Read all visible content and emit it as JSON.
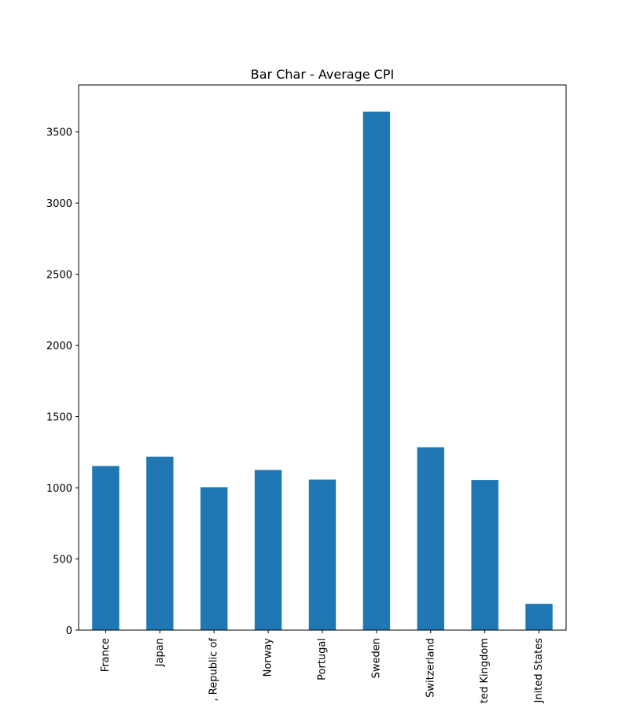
{
  "chart_data": {
    "type": "bar",
    "title": "Bar Char - Average CPI",
    "xlabel": "",
    "ylabel": "",
    "categories": [
      "France",
      "Japan",
      "Korea, Republic of",
      "Norway",
      "Portugal",
      "Sweden",
      "Switzerland",
      "United Kingdom",
      "United States"
    ],
    "tick_label_display": [
      "France",
      "Japan",
      ", Republic of",
      "Norway",
      "Portugal",
      "Sweden",
      "Switzerland",
      "ted Kingdom",
      "Jnited States"
    ],
    "values": [
      1153,
      1218,
      1004,
      1125,
      1058,
      3643,
      1285,
      1055,
      184
    ],
    "ylim": [
      0,
      3830
    ],
    "yticks": [
      0,
      500,
      1000,
      1500,
      2000,
      2500,
      3000,
      3500
    ],
    "grid": false,
    "legend": "none",
    "bar_color": "#1f77b4"
  }
}
